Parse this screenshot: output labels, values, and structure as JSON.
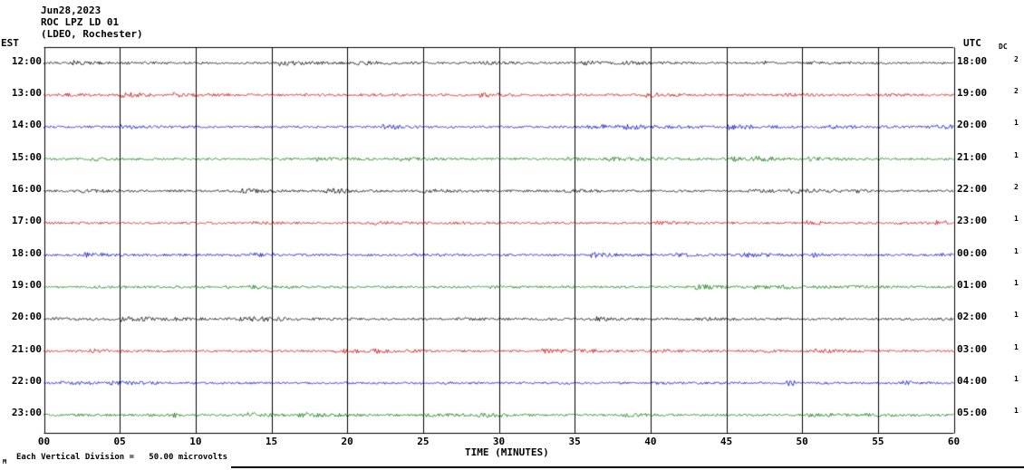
{
  "header": {
    "date": "Jun28,2023",
    "station": "ROC LPZ LD 01",
    "location": "(LDEO, Rochester)"
  },
  "axes": {
    "left_label": "EST",
    "right_label": "UTC",
    "dc_label": "DC",
    "x_title": "TIME (MINUTES)",
    "x_ticks": [
      "00",
      "05",
      "10",
      "15",
      "20",
      "25",
      "30",
      "35",
      "40",
      "45",
      "50",
      "55",
      "60"
    ]
  },
  "footer": {
    "mark": "M",
    "note": "Each Vertical Division =   50.00 microvolts"
  },
  "colors": {
    "black": "#000000",
    "red": "#cc0000",
    "blue": "#0000cc",
    "green": "#007700",
    "grid": "#000000"
  },
  "chart_data": {
    "type": "line",
    "subtype": "helicorder-seismogram",
    "title": "ROC LPZ LD 01 (LDEO, Rochester) Jun28,2023",
    "xlabel": "TIME (MINUTES)",
    "x_range_minutes": [
      0,
      60
    ],
    "x_tick_step_minutes": 5,
    "minutes_per_row": 60,
    "vertical_division_microvolts": 50.0,
    "signal_description": "continuous low-amplitude background seismic noise on every trace, no large events",
    "rows": [
      {
        "est": "12:00",
        "utc": "18:00",
        "color": "#000000",
        "dc": "2"
      },
      {
        "est": "13:00",
        "utc": "19:00",
        "color": "#cc0000",
        "dc": "2"
      },
      {
        "est": "14:00",
        "utc": "20:00",
        "color": "#0000cc",
        "dc": "1"
      },
      {
        "est": "15:00",
        "utc": "21:00",
        "color": "#007700",
        "dc": "1"
      },
      {
        "est": "16:00",
        "utc": "22:00",
        "color": "#000000",
        "dc": "2"
      },
      {
        "est": "17:00",
        "utc": "23:00",
        "color": "#cc0000",
        "dc": "1"
      },
      {
        "est": "18:00",
        "utc": "00:00",
        "color": "#0000cc",
        "dc": "1"
      },
      {
        "est": "19:00",
        "utc": "01:00",
        "color": "#007700",
        "dc": "1"
      },
      {
        "est": "20:00",
        "utc": "02:00",
        "color": "#000000",
        "dc": "1"
      },
      {
        "est": "21:00",
        "utc": "03:00",
        "color": "#cc0000",
        "dc": "1"
      },
      {
        "est": "22:00",
        "utc": "04:00",
        "color": "#0000cc",
        "dc": "1"
      },
      {
        "est": "23:00",
        "utc": "05:00",
        "color": "#007700",
        "dc": "1"
      }
    ]
  }
}
